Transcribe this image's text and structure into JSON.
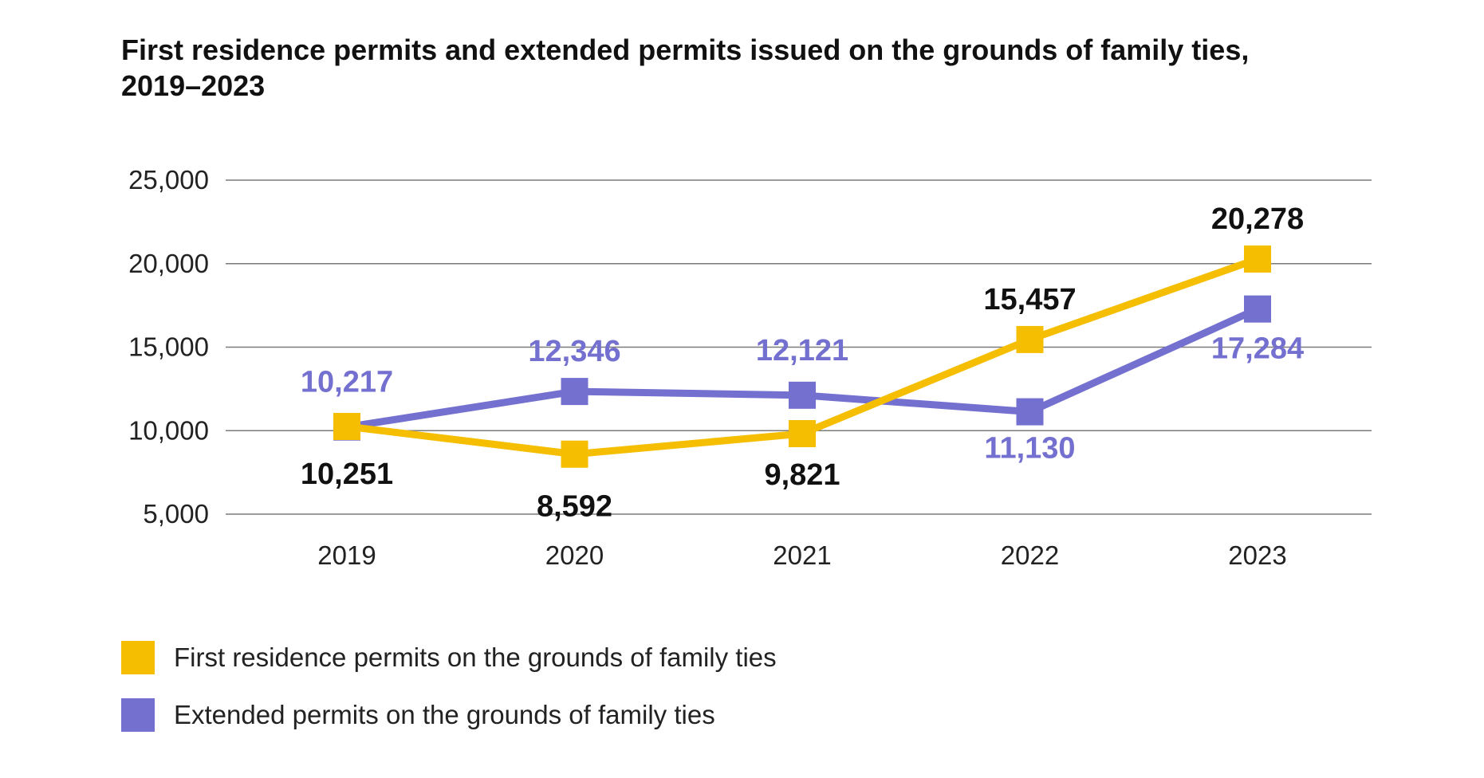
{
  "chart_data": {
    "type": "line",
    "title": "First residence permits and extended permits issued on the grounds of family ties, 2019–2023",
    "categories": [
      "2019",
      "2020",
      "2021",
      "2022",
      "2023"
    ],
    "y_ticks": [
      "25,000",
      "20,000",
      "15,000",
      "10,000",
      "5,000"
    ],
    "ylim": [
      5000,
      25000
    ],
    "grid": true,
    "legend_position": "bottom-left",
    "series": [
      {
        "name": "First residence permits on the grounds of family ties",
        "color": "#F5BE00",
        "label_color": "#111111",
        "values": [
          10251,
          8592,
          9821,
          15457,
          20278
        ],
        "labels": [
          "10,251",
          "8,592",
          "9,821",
          "15,457",
          "20,278"
        ]
      },
      {
        "name": "Extended permits on the grounds of family ties",
        "color": "#7470D0",
        "label_color": "#7470D0",
        "values": [
          10217,
          12346,
          12121,
          11130,
          17284
        ],
        "labels": [
          "10,217",
          "12,346",
          "12,121",
          "11,130",
          "17,284"
        ]
      }
    ]
  }
}
